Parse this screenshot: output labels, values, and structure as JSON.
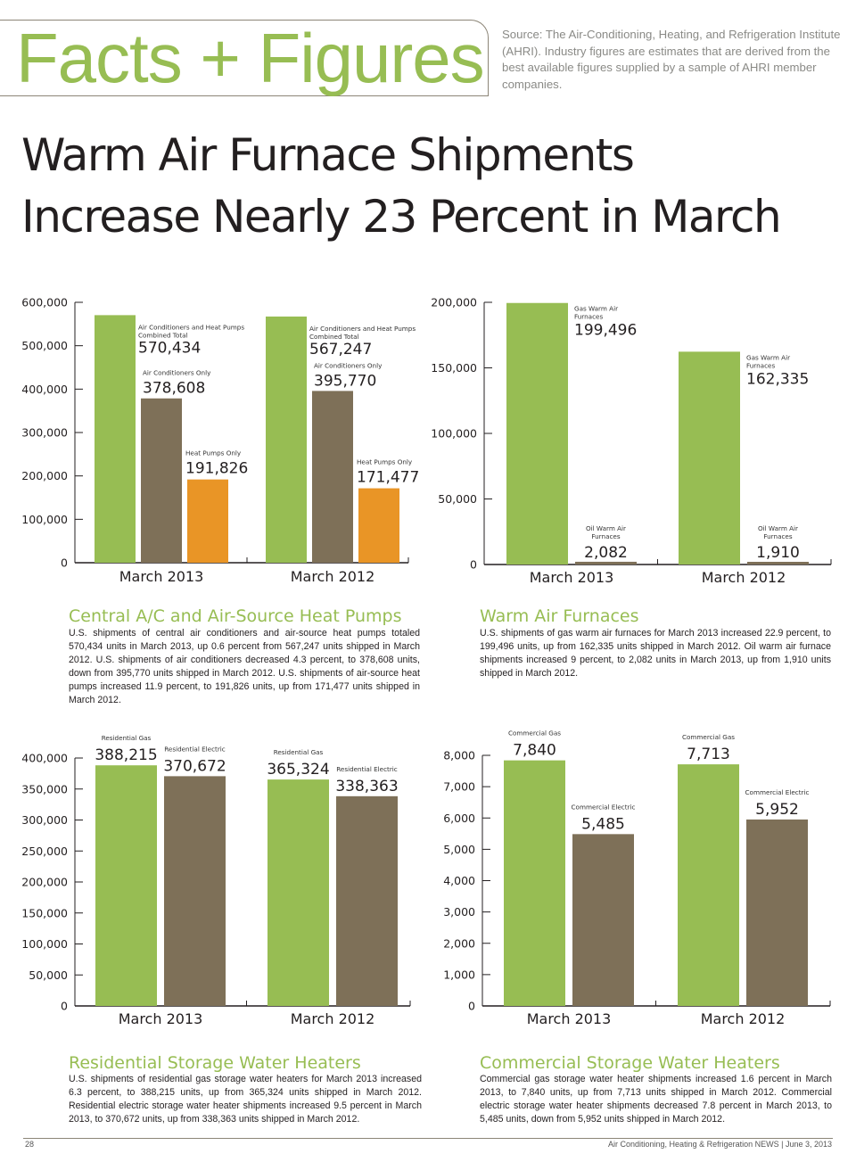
{
  "masthead": {
    "brand": "Facts + Figures",
    "source": "Source: The Air-Conditioning, Heating, and Refrigeration Institute (AHRI). Industry figures are estimates that are derived from the best available figures supplied by a sample of AHRI member companies."
  },
  "headline": {
    "line1": "Warm Air Furnace Shipments",
    "line2": "Increase Nearly 23 Percent in March"
  },
  "colors": {
    "green": "#97bd53",
    "brown": "#7e7058",
    "orange": "#e99526",
    "axis": "#231f20"
  },
  "sections": [
    {
      "title": "Central A/C and Air-Source Heat Pumps",
      "body": "U.S. shipments of central air conditioners and air-source heat pumps totaled 570,434 units in March 2013, up 0.6 percent from 567,247 units shipped in March 2012. U.S. shipments of air conditioners decreased 4.3 percent, to 378,608 units, down from 395,770 units shipped in March 2012. U.S. shipments of air-source heat pumps increased 11.9 percent, to 191,826 units, up from 171,477 units shipped in March 2012."
    },
    {
      "title": "Warm Air Furnaces",
      "body": "U.S. shipments of gas warm air furnaces for March 2013 increased 22.9 percent, to 199,496 units, up from 162,335 units shipped in March 2012. Oil warm air furnace shipments increased 9 percent, to 2,082 units in March 2013, up from 1,910 units shipped in March 2012."
    },
    {
      "title": "Residential Storage Water Heaters",
      "body": "U.S. shipments of residential gas storage water heaters for March 2013 increased 6.3 percent, to 388,215 units, up from 365,324 units shipped in March 2012. Residential electric storage water heater shipments increased 9.5 percent in March 2013, to 370,672 units, up from 338,363 units shipped in March 2012."
    },
    {
      "title": "Commercial Storage Water Heaters",
      "body": "Commercial gas storage water heater shipments increased 1.6 percent in March 2013, to 7,840 units, up from 7,713 units shipped in March 2012. Commercial electric storage water heater shipments decreased 7.8 percent in March 2013, to 5,485 units, down from 5,952 units shipped in March 2012."
    }
  ],
  "footer": {
    "page_number": "28",
    "publication": "Air Conditioning, Heating & Refrigeration NEWS  |  June 3, 2013"
  },
  "chart_data": [
    {
      "type": "bar",
      "title": "Central A/C and Air-Source Heat Pumps",
      "categories": [
        "March 2013",
        "March 2012"
      ],
      "ylim": [
        0,
        600000
      ],
      "yticks": [
        0,
        100000,
        200000,
        300000,
        400000,
        500000,
        600000
      ],
      "ytick_labels": [
        "0",
        "100,000",
        "200,000",
        "300,000",
        "400,000",
        "500,000",
        "600,000"
      ],
      "grid": false,
      "series": [
        {
          "name": "Air Conditioners and Heat Pumps Combined Total",
          "color": "green",
          "values": [
            570434,
            567247
          ],
          "labels": [
            "570,434",
            "567,247"
          ]
        },
        {
          "name": "Air Conditioners Only",
          "color": "brown",
          "values": [
            378608,
            395770
          ],
          "labels": [
            "378,608",
            "395,770"
          ]
        },
        {
          "name": "Heat Pumps Only",
          "color": "orange",
          "values": [
            191826,
            171477
          ],
          "labels": [
            "191,826",
            "171,477"
          ]
        }
      ]
    },
    {
      "type": "bar",
      "title": "Warm Air Furnaces",
      "categories": [
        "March 2013",
        "March 2012"
      ],
      "ylim": [
        0,
        200000
      ],
      "yticks": [
        0,
        50000,
        100000,
        150000,
        200000
      ],
      "ytick_labels": [
        "0",
        "50,000",
        "100,000",
        "150,000",
        "200,000"
      ],
      "grid": false,
      "series": [
        {
          "name": "Gas Warm Air Furnaces",
          "color": "green",
          "values": [
            199496,
            162335
          ],
          "labels": [
            "199,496",
            "162,335"
          ]
        },
        {
          "name": "Oil Warm Air Furnaces",
          "color": "brown",
          "values": [
            2082,
            1910
          ],
          "labels": [
            "2,082",
            "1,910"
          ]
        }
      ]
    },
    {
      "type": "bar",
      "title": "Residential Storage Water Heaters",
      "categories": [
        "March 2013",
        "March 2012"
      ],
      "ylim": [
        0,
        400000
      ],
      "yticks": [
        0,
        50000,
        100000,
        150000,
        200000,
        250000,
        300000,
        350000,
        400000
      ],
      "ytick_labels": [
        "0",
        "50,000",
        "100,000",
        "150,000",
        "200,000",
        "250,000",
        "300,000",
        "350,000",
        "400,000"
      ],
      "grid": false,
      "series": [
        {
          "name": "Residential Gas",
          "color": "green",
          "values": [
            388215,
            365324
          ],
          "labels": [
            "388,215",
            "365,324"
          ]
        },
        {
          "name": "Residential Electric",
          "color": "brown",
          "values": [
            370672,
            338363
          ],
          "labels": [
            "370,672",
            "338,363"
          ]
        }
      ]
    },
    {
      "type": "bar",
      "title": "Commercial Storage Water Heaters",
      "categories": [
        "March 2013",
        "March 2012"
      ],
      "ylim": [
        0,
        8000
      ],
      "yticks": [
        0,
        1000,
        2000,
        3000,
        4000,
        5000,
        6000,
        7000,
        8000
      ],
      "ytick_labels": [
        "0",
        "1,000",
        "2,000",
        "3,000",
        "4,000",
        "5,000",
        "6,000",
        "7,000",
        "8,000"
      ],
      "grid": false,
      "series": [
        {
          "name": "Commercial Gas",
          "color": "green",
          "values": [
            7840,
            7713
          ],
          "labels": [
            "7,840",
            "7,713"
          ]
        },
        {
          "name": "Commercial Electric",
          "color": "brown",
          "values": [
            5485,
            5952
          ],
          "labels": [
            "5,485",
            "5,952"
          ]
        }
      ]
    }
  ]
}
